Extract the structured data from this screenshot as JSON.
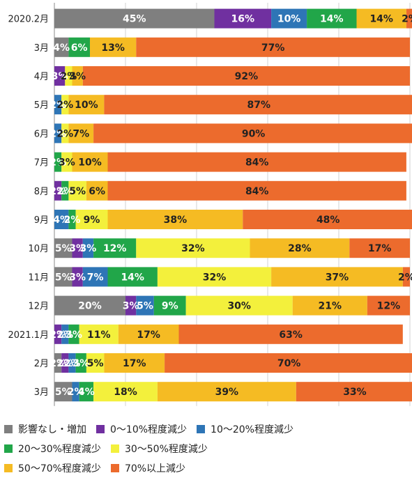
{
  "chart_data": {
    "type": "bar",
    "orientation": "horizontal",
    "stacked": true,
    "categories": [
      "2020.2月",
      "3月",
      "4月",
      "5月",
      "6月",
      "7月",
      "8月",
      "9月",
      "10月",
      "11月",
      "12月",
      "2021.1月",
      "2月",
      "3月"
    ],
    "series": [
      {
        "name": "影響なし・増加",
        "color": "#7f7f7f",
        "values": [
          45,
          4,
          0,
          0,
          0,
          0,
          0,
          0,
          5,
          5,
          20,
          0,
          2,
          5
        ],
        "labels": [
          "45%",
          "4%",
          "",
          "",
          "",
          "",
          "",
          "",
          "5%",
          "5%",
          "20%",
          "",
          "2%",
          "5%"
        ]
      },
      {
        "name": "0～10%程度減少",
        "color": "#7030a0",
        "values": [
          16,
          0,
          3,
          0,
          0,
          0,
          2,
          0,
          3,
          3,
          3,
          2,
          2,
          0
        ],
        "labels": [
          "16%",
          "",
          "3%",
          "",
          "",
          "",
          "2%",
          "",
          "3%",
          "3%",
          "3%",
          "2%",
          "2%",
          ""
        ]
      },
      {
        "name": "10～20%程度減少",
        "color": "#2e75b6",
        "values": [
          10,
          0,
          0,
          2,
          2,
          0,
          0,
          4,
          3,
          7,
          5,
          2,
          2,
          2
        ],
        "labels": [
          "10%",
          "",
          "",
          "2%",
          "2%",
          "",
          "",
          "4%",
          "3%",
          "7%",
          "5%",
          "2%",
          "2%",
          "2%"
        ]
      },
      {
        "name": "20～30%程度減少",
        "color": "#21a649",
        "values": [
          14,
          6,
          0,
          0,
          0,
          2,
          2,
          2,
          12,
          14,
          9,
          3,
          3,
          4
        ],
        "labels": [
          "14%",
          "6%",
          "",
          "",
          "",
          "2%",
          "2%",
          "2%",
          "12%",
          "14%",
          "9%",
          "3%",
          "3%",
          "4%"
        ]
      },
      {
        "name": "30～50%程度減少",
        "color": "#f3f03c",
        "values": [
          0,
          0,
          2,
          2,
          2,
          3,
          5,
          9,
          32,
          32,
          30,
          11,
          5,
          18
        ],
        "labels": [
          "",
          "",
          "2%",
          "2%",
          "2%",
          "3%",
          "5%",
          "9%",
          "32%",
          "32%",
          "30%",
          "11%",
          "5%",
          "18%"
        ]
      },
      {
        "name": "50～70%程度減少",
        "color": "#f5bb23",
        "values": [
          14,
          13,
          3,
          10,
          7,
          10,
          6,
          38,
          28,
          37,
          21,
          17,
          17,
          39
        ],
        "labels": [
          "14%",
          "13%",
          "3%",
          "10%",
          "7%",
          "10%",
          "6%",
          "38%",
          "28%",
          "37%",
          "21%",
          "17%",
          "17%",
          "39%"
        ]
      },
      {
        "name": "70%以上減少",
        "color": "#ec6b2d",
        "values": [
          2,
          77,
          92,
          87,
          90,
          84,
          84,
          48,
          17,
          2,
          12,
          63,
          70,
          33
        ],
        "labels": [
          "2%",
          "77%",
          "92%",
          "87%",
          "90%",
          "84%",
          "84%",
          "48%",
          "17%",
          "2%",
          "12%",
          "63%",
          "70%",
          "33%"
        ]
      }
    ],
    "xlim": [
      0,
      100
    ],
    "grid": true,
    "legend_position": "bottom"
  }
}
